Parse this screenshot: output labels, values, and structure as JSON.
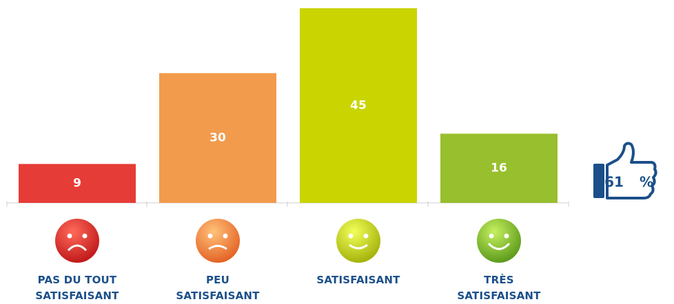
{
  "chart_data": {
    "type": "bar",
    "categories": [
      "PAS DU TOUT\nSATISFAISANT",
      "PEU\nSATISFAISANT",
      "SATISFAISANT",
      "TRÈS\nSATISFAISANT"
    ],
    "values": [
      9,
      30,
      45,
      16
    ],
    "colors": [
      "#e63c37",
      "#f29b4c",
      "#c9d400",
      "#98bf2e"
    ],
    "annotation_value": 61,
    "annotation_unit": "%"
  }
}
